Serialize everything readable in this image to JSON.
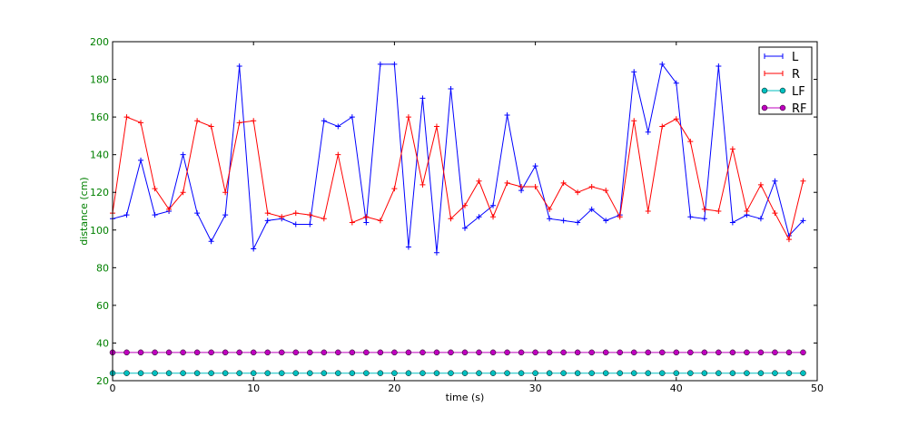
{
  "chart_data": {
    "type": "line",
    "title": "",
    "xlabel": "time (s)",
    "ylabel": "distance (cm)",
    "xlim": [
      0,
      50
    ],
    "ylim": [
      20,
      200
    ],
    "xticks": [
      0,
      10,
      20,
      30,
      40,
      50
    ],
    "yticks": [
      20,
      40,
      60,
      80,
      100,
      120,
      140,
      160,
      180,
      200
    ],
    "grid": false,
    "legend_position": "upper right",
    "x": [
      0,
      1,
      2,
      3,
      4,
      5,
      6,
      7,
      8,
      9,
      10,
      11,
      12,
      13,
      14,
      15,
      16,
      17,
      18,
      19,
      20,
      21,
      22,
      23,
      24,
      25,
      26,
      27,
      28,
      29,
      30,
      31,
      32,
      33,
      34,
      35,
      36,
      37,
      38,
      39,
      40,
      41,
      42,
      43,
      44,
      45,
      46,
      47,
      48,
      49
    ],
    "series": [
      {
        "name": "L",
        "color": "#0000ff",
        "marker": "+",
        "values": [
          106,
          108,
          137,
          108,
          110,
          140,
          109,
          94,
          108,
          187,
          90,
          105,
          106,
          103,
          103,
          158,
          155,
          160,
          104,
          188,
          188,
          91,
          170,
          88,
          175,
          101,
          107,
          113,
          161,
          121,
          134,
          106,
          105,
          104,
          111,
          105,
          108,
          184,
          152,
          188,
          178,
          107,
          106,
          187,
          104,
          108,
          106,
          126,
          97,
          105
        ]
      },
      {
        "name": "R",
        "color": "#ff0000",
        "marker": "+",
        "values": [
          109,
          160,
          157,
          122,
          111,
          120,
          158,
          155,
          120,
          157,
          158,
          109,
          107,
          109,
          108,
          106,
          140,
          104,
          107,
          105,
          122,
          160,
          124,
          155,
          106,
          113,
          126,
          107,
          125,
          123,
          123,
          111,
          125,
          120,
          123,
          121,
          107,
          158,
          110,
          155,
          159,
          147,
          111,
          110,
          143,
          110,
          124,
          109,
          95,
          126
        ]
      },
      {
        "name": "LF",
        "color": "#00bfbf",
        "marker": "o",
        "values": [
          24,
          24,
          24,
          24,
          24,
          24,
          24,
          24,
          24,
          24,
          24,
          24,
          24,
          24,
          24,
          24,
          24,
          24,
          24,
          24,
          24,
          24,
          24,
          24,
          24,
          24,
          24,
          24,
          24,
          24,
          24,
          24,
          24,
          24,
          24,
          24,
          24,
          24,
          24,
          24,
          24,
          24,
          24,
          24,
          24,
          24,
          24,
          24,
          24,
          24
        ]
      },
      {
        "name": "RF",
        "color": "#bf00bf",
        "marker": "o",
        "values": [
          35,
          35,
          35,
          35,
          35,
          35,
          35,
          35,
          35,
          35,
          35,
          35,
          35,
          35,
          35,
          35,
          35,
          35,
          35,
          35,
          35,
          35,
          35,
          35,
          35,
          35,
          35,
          35,
          35,
          35,
          35,
          35,
          35,
          35,
          35,
          35,
          35,
          35,
          35,
          35,
          35,
          35,
          35,
          35,
          35,
          35,
          35,
          35,
          35,
          35
        ]
      }
    ]
  },
  "colors": {
    "tick_label": "#008000",
    "axis": "#000000"
  }
}
